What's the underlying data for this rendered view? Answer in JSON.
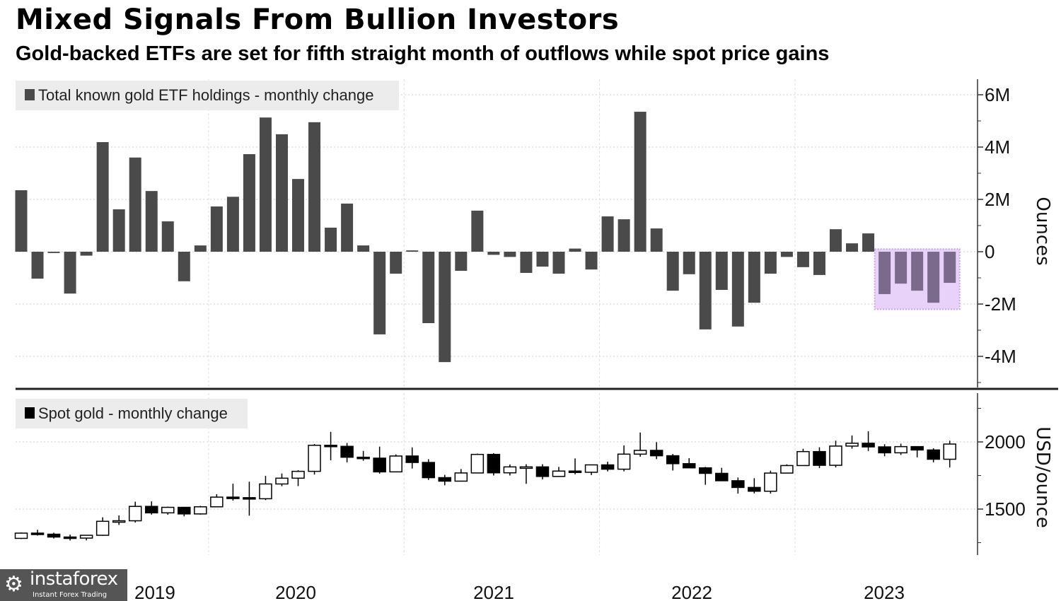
{
  "title": "Mixed Signals From Bullion Investors",
  "subtitle": "Gold-backed ETFs are set for fifth straight month of outflows while spot price gains",
  "watermark": {
    "name": "instaforex",
    "tagline": "Instant Forex Trading"
  },
  "chart_data": [
    {
      "type": "bar",
      "legend": "Total known gold ETF holdings - monthly change",
      "ylabel": "Ounces",
      "y_ticks": [
        "6M",
        "4M",
        "2M",
        "0",
        "-2M",
        "-4M"
      ],
      "y_tick_values": [
        6,
        4,
        2,
        0,
        -2,
        -4
      ],
      "ylim_millions": [
        -5.2,
        6.5
      ],
      "grid": true,
      "legend_position": "top-left",
      "bar_color": "#4a4a4a",
      "highlight": {
        "from": "2023-06",
        "to": "2023-10",
        "fill": "#e9d2fa",
        "bar_color": "#7b6a8c"
      },
      "x_start": "2019-01",
      "values_millions_oz": [
        2.35,
        -1.03,
        -0.05,
        -1.6,
        -0.15,
        4.19,
        1.62,
        3.6,
        2.32,
        1.16,
        -1.13,
        0.24,
        1.73,
        2.1,
        3.73,
        5.13,
        4.49,
        2.78,
        4.95,
        0.92,
        1.84,
        0.24,
        -3.16,
        -0.84,
        0.05,
        -2.73,
        -4.22,
        -0.73,
        1.57,
        -0.12,
        -0.2,
        -0.81,
        -0.57,
        -0.84,
        0.12,
        -0.68,
        1.35,
        1.24,
        5.35,
        0.89,
        -1.49,
        -0.86,
        -2.97,
        -1.46,
        -2.86,
        -1.95,
        -0.84,
        -0.2,
        -0.59,
        -0.89,
        0.86,
        0.32,
        0.7,
        -1.62,
        -1.22,
        -1.49,
        -1.95,
        -1.19
      ]
    },
    {
      "type": "candlestick",
      "legend": "Spot gold - monthly change",
      "ylabel": "USD/ounce",
      "y_ticks": [
        "2000",
        "1500"
      ],
      "y_tick_values": [
        2000,
        1500
      ],
      "ylim": [
        1158,
        2368
      ],
      "grid": true,
      "legend_position": "top-left",
      "x_start": "2019-01",
      "x_ticks": [
        "2019",
        "2020",
        "2021",
        "2022",
        "2023"
      ],
      "ohlc": [
        [
          1282,
          1326,
          1277,
          1321
        ],
        [
          1321,
          1346,
          1303,
          1313
        ],
        [
          1313,
          1324,
          1281,
          1292
        ],
        [
          1292,
          1310,
          1266,
          1284
        ],
        [
          1284,
          1306,
          1267,
          1305
        ],
        [
          1305,
          1439,
          1301,
          1409
        ],
        [
          1409,
          1453,
          1382,
          1413
        ],
        [
          1413,
          1555,
          1400,
          1520
        ],
        [
          1520,
          1557,
          1459,
          1472
        ],
        [
          1472,
          1518,
          1458,
          1513
        ],
        [
          1513,
          1516,
          1446,
          1464
        ],
        [
          1464,
          1524,
          1459,
          1517
        ],
        [
          1517,
          1611,
          1517,
          1589
        ],
        [
          1589,
          1689,
          1563,
          1585
        ],
        [
          1585,
          1704,
          1451,
          1577
        ],
        [
          1577,
          1747,
          1567,
          1687
        ],
        [
          1687,
          1765,
          1670,
          1730
        ],
        [
          1730,
          1789,
          1671,
          1781
        ],
        [
          1781,
          1984,
          1757,
          1975
        ],
        [
          1975,
          2075,
          1863,
          1967
        ],
        [
          1967,
          1992,
          1848,
          1886
        ],
        [
          1886,
          1933,
          1860,
          1879
        ],
        [
          1879,
          1965,
          1764,
          1777
        ],
        [
          1777,
          1907,
          1775,
          1895
        ],
        [
          1895,
          1959,
          1802,
          1847
        ],
        [
          1847,
          1871,
          1717,
          1734
        ],
        [
          1734,
          1755,
          1677,
          1708
        ],
        [
          1708,
          1798,
          1705,
          1769
        ],
        [
          1769,
          1913,
          1766,
          1907
        ],
        [
          1907,
          1916,
          1750,
          1770
        ],
        [
          1770,
          1832,
          1750,
          1814
        ],
        [
          1814,
          1834,
          1688,
          1814
        ],
        [
          1814,
          1834,
          1721,
          1743
        ],
        [
          1743,
          1814,
          1746,
          1783
        ],
        [
          1783,
          1877,
          1759,
          1774
        ],
        [
          1774,
          1831,
          1753,
          1829
        ],
        [
          1829,
          1853,
          1780,
          1797
        ],
        [
          1797,
          1974,
          1781,
          1909
        ],
        [
          1909,
          2070,
          1890,
          1937
        ],
        [
          1937,
          1998,
          1872,
          1897
        ],
        [
          1897,
          1910,
          1787,
          1838
        ],
        [
          1838,
          1879,
          1805,
          1807
        ],
        [
          1807,
          1814,
          1681,
          1766
        ],
        [
          1766,
          1807,
          1709,
          1711
        ],
        [
          1711,
          1735,
          1615,
          1661
        ],
        [
          1661,
          1730,
          1617,
          1633
        ],
        [
          1633,
          1786,
          1616,
          1768
        ],
        [
          1768,
          1833,
          1765,
          1824
        ],
        [
          1824,
          1949,
          1824,
          1928
        ],
        [
          1928,
          1960,
          1805,
          1826
        ],
        [
          1826,
          2009,
          1810,
          1969
        ],
        [
          1969,
          2048,
          1950,
          1990
        ],
        [
          1990,
          2079,
          1932,
          1963
        ],
        [
          1963,
          1983,
          1893,
          1919
        ],
        [
          1919,
          1987,
          1903,
          1965
        ],
        [
          1965,
          1968,
          1885,
          1940
        ],
        [
          1940,
          1953,
          1848,
          1871
        ],
        [
          1871,
          2009,
          1810,
          1984
        ]
      ]
    }
  ]
}
